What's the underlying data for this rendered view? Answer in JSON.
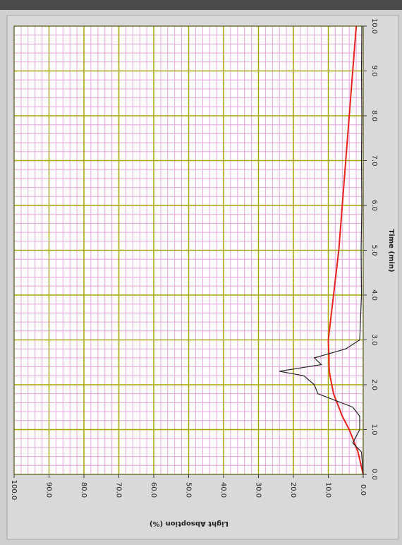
{
  "chart_data": {
    "type": "line",
    "xlabel": "Time (min)",
    "ylabel": "Light Absoption (%)",
    "x": [
      0,
      0.5,
      0.7,
      1,
      1.3,
      1.5,
      1.8,
      2,
      2.2,
      2.3,
      2.45,
      2.6,
      2.8,
      3,
      4,
      5,
      6,
      7,
      8,
      9,
      10
    ],
    "series": [
      {
        "color": "#e8231e",
        "values": [
          0,
          1.5,
          2.5,
          4,
          6,
          7,
          8.5,
          9,
          9.5,
          9.7,
          9.8,
          9.8,
          9.9,
          10,
          8.5,
          7,
          6,
          5,
          4,
          3,
          2
        ]
      },
      {
        "color": "#222222",
        "values": [
          0,
          0.5,
          3,
          1,
          1,
          3,
          13,
          14,
          17,
          24,
          12,
          14,
          5,
          1,
          0.5,
          0.6,
          0.4,
          0.5,
          0.4,
          0.5,
          0.4
        ]
      }
    ],
    "xlim": [
      0,
      10
    ],
    "xticks": [
      {
        "value": 0,
        "label": "0.0"
      },
      {
        "value": 1,
        "label": "1.0"
      },
      {
        "value": 2,
        "label": "2.0"
      },
      {
        "value": 3,
        "label": "3.0"
      },
      {
        "value": 4,
        "label": "4.0"
      },
      {
        "value": 5,
        "label": "5.0"
      },
      {
        "value": 6,
        "label": "6.0"
      },
      {
        "value": 7,
        "label": "7.0"
      },
      {
        "value": 8,
        "label": "8.0"
      },
      {
        "value": 9,
        "label": "9.0"
      },
      {
        "value": 10,
        "label": "10.0"
      }
    ],
    "ylim": [
      0,
      100
    ],
    "yticks": [
      {
        "value": 0,
        "label": "0.0"
      },
      {
        "value": 10,
        "label": "10.0"
      },
      {
        "value": 20,
        "label": "20.0"
      },
      {
        "value": 30,
        "label": "30.0"
      },
      {
        "value": 40,
        "label": "40.0"
      },
      {
        "value": 50,
        "label": "50.0"
      },
      {
        "value": 60,
        "label": "60.0"
      },
      {
        "value": 70,
        "label": "70.0"
      },
      {
        "value": 80,
        "label": "80.0"
      },
      {
        "value": 90,
        "label": "90.0"
      },
      {
        "value": 100,
        "label": "100.0"
      }
    ],
    "grid": true,
    "minor_divisions": 5
  }
}
